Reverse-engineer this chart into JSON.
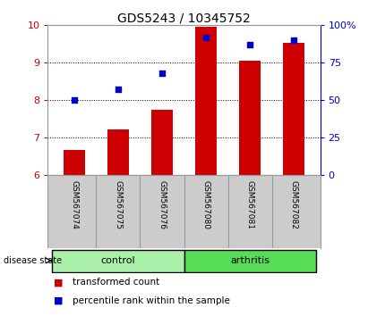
{
  "title": "GDS5243 / 10345752",
  "samples": [
    "GSM567074",
    "GSM567075",
    "GSM567076",
    "GSM567080",
    "GSM567081",
    "GSM567082"
  ],
  "red_bars": [
    6.67,
    7.22,
    7.75,
    9.95,
    9.05,
    9.52
  ],
  "blue_dots": [
    50,
    57,
    68,
    92,
    87,
    90
  ],
  "ylim_left": [
    6,
    10
  ],
  "ylim_right": [
    0,
    100
  ],
  "yticks_left": [
    6,
    7,
    8,
    9,
    10
  ],
  "yticks_right": [
    0,
    25,
    50,
    75,
    100
  ],
  "ytick_right_labels": [
    "0",
    "25",
    "50",
    "75",
    "100%"
  ],
  "groups": [
    {
      "label": "control",
      "color": "#aaf0aa"
    },
    {
      "label": "arthritis",
      "color": "#55dd55"
    }
  ],
  "bar_color": "#cc0000",
  "dot_color": "#0000cc",
  "bar_width": 0.5,
  "label_area_bg": "#cccccc",
  "group_label_fontsize": 8,
  "sample_fontsize": 6.5,
  "title_fontsize": 10,
  "legend_fontsize": 7.5,
  "legend_bar_label": "transformed count",
  "legend_dot_label": "percentile rank within the sample",
  "disease_state_label": "disease state",
  "axis_left_color": "#cc0000",
  "axis_right_color": "#0000cc"
}
